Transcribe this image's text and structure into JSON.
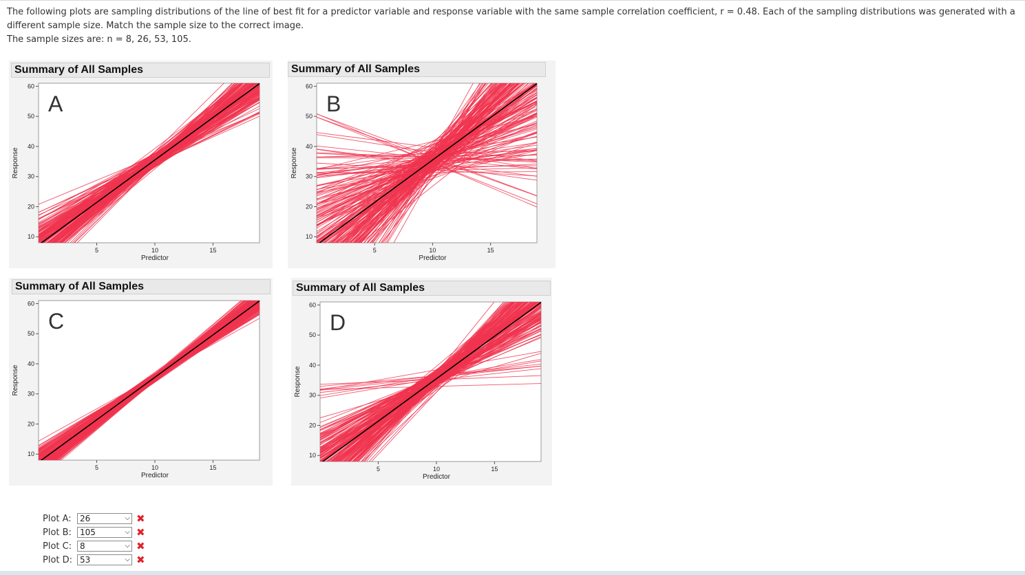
{
  "question": {
    "line1": "The following plots are sampling distributions of the line of best fit for a predictor variable and response variable with the same sample correlation coefficient, r = 0.48. Each of the sampling distributions was generated with a different sample size. Match the sample size to the correct image.",
    "line2": "The sample sizes are: n = 8, 26, 53, 105."
  },
  "colors": {
    "lines": "#f0344f",
    "fit": "#000000",
    "wrong": "#e0242c"
  },
  "plots": [
    {
      "title": "Summary of All Samples",
      "letter": "A",
      "xlabel": "Predictor",
      "ylabel": "Response"
    },
    {
      "title": "Summary of All Samples",
      "letter": "B",
      "xlabel": "Predictor",
      "ylabel": "Response"
    },
    {
      "title": "Summary of All Samples",
      "letter": "C",
      "xlabel": "Predictor",
      "ylabel": "Response"
    },
    {
      "title": "Summary of All Samples",
      "letter": "D",
      "xlabel": "Predictor",
      "ylabel": "Response"
    }
  ],
  "axes": {
    "xticks": [
      "5",
      "10",
      "15"
    ],
    "yticks": [
      "60",
      "50",
      "40",
      "30",
      "20",
      "10"
    ]
  },
  "answers": [
    {
      "label": "Plot A:",
      "value": "26",
      "status": "incorrect"
    },
    {
      "label": "Plot B:",
      "value": "105",
      "status": "incorrect"
    },
    {
      "label": "Plot C:",
      "value": "8",
      "status": "incorrect"
    },
    {
      "label": "Plot D:",
      "value": "53",
      "status": "incorrect"
    }
  ],
  "options": [
    "8",
    "26",
    "53",
    "105"
  ],
  "wrong_mark": "✖"
}
